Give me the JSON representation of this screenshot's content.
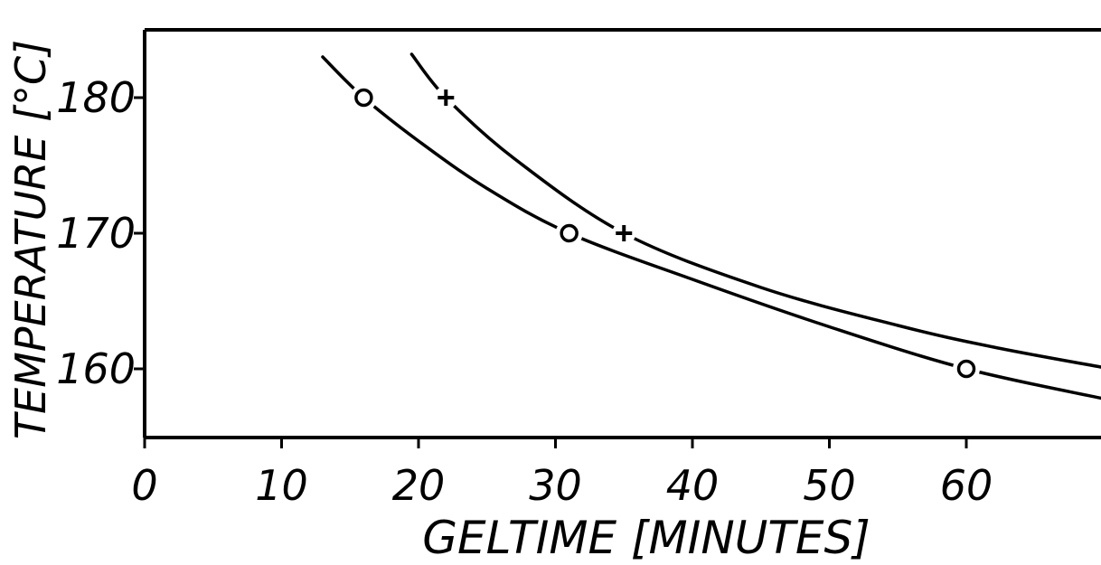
{
  "chart_data": {
    "type": "line",
    "xlabel": "GELTIME [MINUTES]",
    "ylabel": "TEMPERATURE [°C]",
    "xlim": [
      0,
      70
    ],
    "ylim": [
      155,
      185
    ],
    "x_ticks": [
      "0",
      "10",
      "20",
      "30",
      "40",
      "50",
      "60"
    ],
    "y_ticks": [
      "160",
      "170",
      "180"
    ],
    "grid": false,
    "series": [
      {
        "marker": "circle",
        "points": [
          [
            16,
            180
          ],
          [
            31,
            170
          ],
          [
            60,
            160
          ]
        ],
        "curve": [
          [
            13,
            183
          ],
          [
            16,
            180
          ],
          [
            20,
            176.8
          ],
          [
            25,
            173.3
          ],
          [
            31,
            170
          ],
          [
            40,
            166.6
          ],
          [
            50,
            163.1
          ],
          [
            60,
            160
          ],
          [
            70,
            157.8
          ]
        ]
      },
      {
        "marker": "plus",
        "points": [
          [
            22,
            180
          ],
          [
            35,
            170
          ]
        ],
        "curve": [
          [
            19.5,
            183.2
          ],
          [
            22,
            180
          ],
          [
            27,
            175.5
          ],
          [
            35,
            170
          ],
          [
            45,
            166
          ],
          [
            55,
            163.2
          ],
          [
            62,
            161.6
          ],
          [
            70,
            160.1
          ]
        ]
      }
    ]
  }
}
